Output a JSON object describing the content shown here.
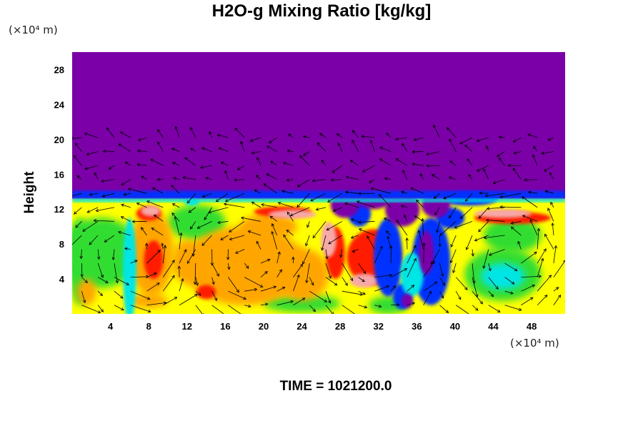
{
  "chart_data": {
    "type": "heatmap",
    "title": "H2O-g Mixing Ratio [kg/kg]",
    "ylabel": "Height",
    "xlabel": "",
    "x_unit": "(×10⁴ m)",
    "y_unit": "(×10⁴ m)",
    "footer": "TIME = 1021200.0",
    "xlim": [
      0,
      51.5
    ],
    "ylim": [
      0,
      30
    ],
    "x_ticks": [
      "4",
      "8",
      "12",
      "16",
      "20",
      "24",
      "28",
      "32",
      "36",
      "40",
      "44",
      "48"
    ],
    "y_ticks": [
      "4",
      "8",
      "12",
      "16",
      "20",
      "24",
      "28"
    ],
    "has_wind_vectors": true,
    "colors": {
      "top_layer": "#7b00a8",
      "boundary": "#0033ff",
      "cyan": "#00e5e5",
      "green": "#33dd33",
      "yellow": "#ffff00",
      "orange": "#ffa500",
      "red": "#ff1a00",
      "pink": "#f7a8a8"
    }
  }
}
